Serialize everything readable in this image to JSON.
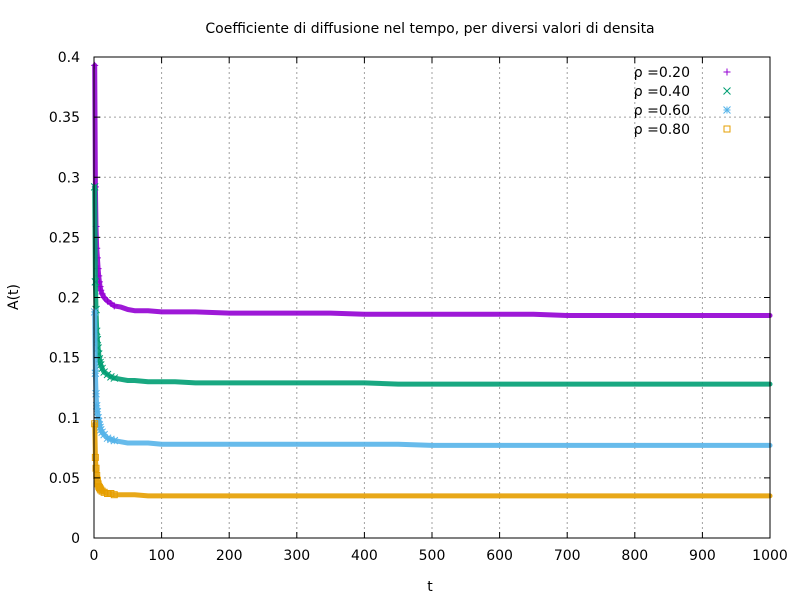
{
  "chart_data": {
    "type": "scatter",
    "title": "Coefficiente di diffusione nel tempo, per diversi valori di densita",
    "xlabel": "t",
    "ylabel": "A(t)",
    "xlim": [
      0,
      1000
    ],
    "ylim": [
      0,
      0.4
    ],
    "xticks": [
      "0",
      "100",
      "200",
      "300",
      "400",
      "500",
      "600",
      "700",
      "800",
      "900",
      "1000"
    ],
    "yticks": [
      "0",
      "0.05",
      "0.1",
      "0.15",
      "0.2",
      "0.25",
      "0.3",
      "0.35",
      "0.4"
    ],
    "grid": true,
    "legend_position": "top-right",
    "series": [
      {
        "name": "ρ =0.20",
        "color": "#9400d3",
        "marker": "plus",
        "x": [
          1,
          2,
          3,
          4,
          5,
          6,
          7,
          8,
          9,
          10,
          12,
          15,
          20,
          25,
          30,
          40,
          50,
          60,
          80,
          100,
          120,
          150,
          200,
          250,
          300,
          350,
          400,
          450,
          500,
          550,
          600,
          650,
          700,
          750,
          800,
          850,
          900,
          950,
          1000
        ],
        "y": [
          0.393,
          0.292,
          0.259,
          0.241,
          0.233,
          0.224,
          0.218,
          0.213,
          0.209,
          0.206,
          0.203,
          0.2,
          0.197,
          0.195,
          0.193,
          0.192,
          0.19,
          0.189,
          0.189,
          0.188,
          0.188,
          0.188,
          0.187,
          0.187,
          0.187,
          0.187,
          0.186,
          0.186,
          0.186,
          0.186,
          0.186,
          0.186,
          0.185,
          0.185,
          0.185,
          0.185,
          0.185,
          0.185,
          0.185
        ]
      },
      {
        "name": "ρ =0.40",
        "color": "#009e73",
        "marker": "cross",
        "x": [
          1,
          2,
          3,
          4,
          5,
          6,
          7,
          8,
          9,
          10,
          12,
          15,
          20,
          25,
          30,
          40,
          50,
          60,
          80,
          100,
          120,
          150,
          200,
          250,
          300,
          350,
          400,
          450,
          500,
          550,
          600,
          650,
          700,
          750,
          800,
          850,
          900,
          950,
          1000
        ],
        "y": [
          0.292,
          0.213,
          0.19,
          0.172,
          0.165,
          0.158,
          0.153,
          0.149,
          0.146,
          0.144,
          0.141,
          0.138,
          0.136,
          0.134,
          0.133,
          0.132,
          0.131,
          0.131,
          0.13,
          0.13,
          0.13,
          0.129,
          0.129,
          0.129,
          0.129,
          0.129,
          0.129,
          0.128,
          0.128,
          0.128,
          0.128,
          0.128,
          0.128,
          0.128,
          0.128,
          0.128,
          0.128,
          0.128,
          0.128
        ]
      },
      {
        "name": "ρ =0.60",
        "color": "#56b4e9",
        "marker": "star",
        "x": [
          1,
          2,
          3,
          4,
          5,
          6,
          7,
          8,
          9,
          10,
          12,
          15,
          20,
          25,
          30,
          40,
          50,
          60,
          80,
          100,
          120,
          150,
          200,
          250,
          300,
          350,
          400,
          450,
          500,
          550,
          600,
          650,
          700,
          750,
          800,
          850,
          900,
          950,
          1000
        ],
        "y": [
          0.188,
          0.137,
          0.12,
          0.11,
          0.105,
          0.1,
          0.097,
          0.094,
          0.092,
          0.09,
          0.088,
          0.086,
          0.083,
          0.082,
          0.081,
          0.08,
          0.079,
          0.079,
          0.079,
          0.078,
          0.078,
          0.078,
          0.078,
          0.078,
          0.078,
          0.078,
          0.078,
          0.078,
          0.077,
          0.077,
          0.077,
          0.077,
          0.077,
          0.077,
          0.077,
          0.077,
          0.077,
          0.077,
          0.077
        ]
      },
      {
        "name": "ρ =0.80",
        "color": "#e69f00",
        "marker": "square",
        "x": [
          1,
          2,
          3,
          4,
          5,
          6,
          7,
          8,
          9,
          10,
          12,
          15,
          20,
          25,
          30,
          40,
          50,
          60,
          80,
          100,
          120,
          150,
          200,
          250,
          300,
          350,
          400,
          450,
          500,
          550,
          600,
          650,
          700,
          750,
          800,
          850,
          900,
          950,
          1000
        ],
        "y": [
          0.095,
          0.067,
          0.058,
          0.052,
          0.048,
          0.045,
          0.043,
          0.042,
          0.041,
          0.04,
          0.039,
          0.038,
          0.037,
          0.037,
          0.036,
          0.036,
          0.036,
          0.036,
          0.035,
          0.035,
          0.035,
          0.035,
          0.035,
          0.035,
          0.035,
          0.035,
          0.035,
          0.035,
          0.035,
          0.035,
          0.035,
          0.035,
          0.035,
          0.035,
          0.035,
          0.035,
          0.035,
          0.035,
          0.035
        ]
      }
    ]
  }
}
